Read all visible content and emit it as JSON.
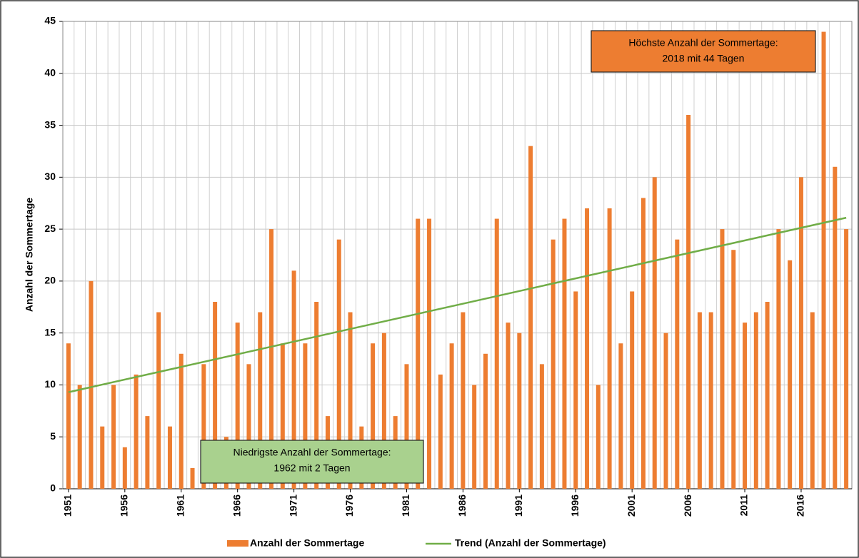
{
  "chart_data": {
    "type": "bar",
    "y_label": "Anzahl der Sommertage",
    "x": [
      1951,
      1952,
      1953,
      1954,
      1955,
      1956,
      1957,
      1958,
      1959,
      1960,
      1961,
      1962,
      1963,
      1964,
      1965,
      1966,
      1967,
      1968,
      1969,
      1970,
      1971,
      1972,
      1973,
      1974,
      1975,
      1976,
      1977,
      1978,
      1979,
      1980,
      1981,
      1982,
      1983,
      1984,
      1985,
      1986,
      1987,
      1988,
      1989,
      1990,
      1991,
      1992,
      1993,
      1994,
      1995,
      1996,
      1997,
      1998,
      1999,
      2000,
      2001,
      2002,
      2003,
      2004,
      2005,
      2006,
      2007,
      2008,
      2009,
      2010,
      2011,
      2012,
      2013,
      2014,
      2015,
      2016,
      2017,
      2018,
      2019,
      2020
    ],
    "series": [
      {
        "name": "Anzahl der Sommertage",
        "color": "#ed7d31",
        "values": [
          14,
          10,
          20,
          6,
          10,
          4,
          11,
          7,
          17,
          6,
          13,
          2,
          12,
          18,
          5,
          16,
          12,
          17,
          25,
          14,
          21,
          14,
          18,
          7,
          24,
          17,
          6,
          14,
          15,
          7,
          12,
          26,
          26,
          11,
          14,
          17,
          10,
          13,
          26,
          16,
          15,
          33,
          12,
          24,
          26,
          19,
          27,
          10,
          27,
          14,
          19,
          28,
          30,
          15,
          24,
          36,
          17,
          17,
          25,
          23,
          16,
          17,
          18,
          25,
          22,
          30,
          17,
          44,
          31,
          25
        ]
      },
      {
        "name": "Trend (Anzahl der Sommertage)",
        "color": "#70ad47",
        "kind": "line",
        "x": [
          1951,
          2020
        ],
        "values": [
          9.3,
          26.1
        ]
      }
    ],
    "xlim": [
      1950.5,
      2020.5
    ],
    "xticks": [
      1951,
      1956,
      1961,
      1966,
      1971,
      1976,
      1981,
      1986,
      1991,
      1996,
      2001,
      2006,
      2011,
      2016
    ],
    "ylim": [
      0,
      45
    ],
    "yticks": [
      0,
      5,
      10,
      15,
      20,
      25,
      30,
      35,
      40,
      45
    ],
    "grid": true,
    "annotations": [
      {
        "lines": [
          "Höchste Anzahl der Sommertage:",
          "2018 mit 44 Tagen"
        ],
        "color": "#ed7d31"
      },
      {
        "lines": [
          "Niedrigste Anzahl der Sommertage:",
          "1962 mit 2 Tagen"
        ],
        "color": "#a9d18e"
      }
    ]
  }
}
